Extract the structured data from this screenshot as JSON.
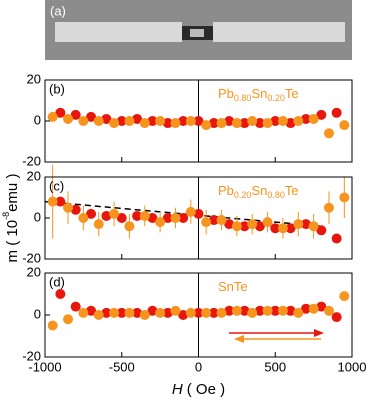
{
  "photo_label": "(a)",
  "chart_data": [
    {
      "type": "scatter",
      "label": "(b)",
      "sample": [
        "Pb",
        "0.80",
        "Sn",
        "0.20",
        "Te"
      ],
      "xlim": [
        -1000,
        1000
      ],
      "xticks": [
        -1000,
        -500,
        0,
        500,
        1000
      ],
      "ylim": [
        -20,
        20
      ],
      "yticks": [
        -20,
        0,
        20
      ],
      "series": [
        {
          "color": "#e8160c",
          "x": [
            -900,
            -800,
            -700,
            -600,
            -500,
            -400,
            -300,
            -200,
            -100,
            0,
            100,
            200,
            300,
            400,
            500,
            600,
            700,
            800,
            900
          ],
          "values": [
            4,
            3,
            2,
            1,
            0,
            1,
            0,
            -1,
            0,
            0,
            -1,
            0,
            -1,
            -1,
            0,
            -1,
            1,
            3,
            4
          ]
        },
        {
          "color": "#f7941d",
          "x": [
            -950,
            -850,
            -750,
            -650,
            -550,
            -450,
            -350,
            -250,
            -150,
            -50,
            50,
            150,
            250,
            350,
            450,
            550,
            650,
            750,
            850,
            950
          ],
          "values": [
            2,
            1,
            0,
            0,
            -1,
            0,
            -1,
            0,
            -1,
            0,
            -2,
            -1,
            -1,
            0,
            -1,
            0,
            0,
            1,
            -6,
            -2
          ]
        }
      ]
    },
    {
      "type": "scatter",
      "label": "(c)",
      "sample": [
        "Pb",
        "0.20",
        "Sn",
        "0.80",
        "Te"
      ],
      "xlim": [
        -1000,
        1000
      ],
      "xticks": [
        -1000,
        -500,
        0,
        500,
        1000
      ],
      "ylim": [
        -20,
        20
      ],
      "yticks": [
        -20,
        0,
        20
      ],
      "fit": {
        "x": [
          -1000,
          800
        ],
        "values": [
          8,
          -4
        ]
      },
      "series": [
        {
          "color": "#e8160c",
          "x": [
            -900,
            -800,
            -700,
            -600,
            -500,
            -400,
            -300,
            -200,
            -100,
            0,
            100,
            200,
            300,
            400,
            500,
            600,
            700,
            800,
            900
          ],
          "values": [
            8,
            4,
            2,
            1,
            0,
            1,
            0,
            0,
            0,
            2,
            -1,
            -3,
            -4,
            -4,
            -5,
            -5,
            -3,
            -6,
            -10
          ]
        },
        {
          "color": "#f7941d",
          "x": [
            -950,
            -850,
            -750,
            -650,
            -550,
            -450,
            -350,
            -250,
            -150,
            -50,
            50,
            150,
            250,
            350,
            450,
            550,
            650,
            750,
            850,
            950
          ],
          "values": [
            8,
            5,
            0,
            -3,
            2,
            -4,
            1,
            -2,
            0,
            3,
            -2,
            -1,
            -4,
            -3,
            -2,
            -5,
            -3,
            -4,
            5,
            10
          ],
          "errors": [
            18,
            8,
            6,
            6,
            6,
            6,
            5,
            5,
            5,
            6,
            6,
            5,
            5,
            5,
            5,
            5,
            6,
            6,
            8,
            10
          ]
        }
      ]
    },
    {
      "type": "scatter",
      "label": "(d)",
      "sample": [
        "SnTe"
      ],
      "xlim": [
        -1000,
        1000
      ],
      "xticks": [
        -1000,
        -500,
        0,
        500,
        1000
      ],
      "ylim": [
        -20,
        20
      ],
      "yticks": [
        -20,
        0,
        20
      ],
      "xlabel": {
        "symbol": "H",
        "unit": "( Oe )"
      },
      "ylabel": {
        "text": "m  ( 10",
        "sup": "-8",
        "rest": "emu )"
      },
      "series": [
        {
          "color": "#e8160c",
          "x": [
            -900,
            -800,
            -700,
            -600,
            -500,
            -400,
            -300,
            -200,
            -100,
            0,
            100,
            200,
            300,
            400,
            500,
            600,
            700,
            800,
            900
          ],
          "values": [
            10,
            4,
            2,
            1,
            1,
            1,
            2,
            1,
            0,
            1,
            1,
            2,
            2,
            2,
            2,
            2,
            3,
            4,
            -1
          ]
        },
        {
          "color": "#f7941d",
          "x": [
            -950,
            -850,
            -750,
            -650,
            -550,
            -450,
            -350,
            -250,
            -150,
            -50,
            50,
            150,
            250,
            350,
            450,
            550,
            650,
            750,
            850,
            950
          ],
          "values": [
            -5,
            -2,
            1,
            0,
            1,
            1,
            0,
            1,
            2,
            1,
            1,
            1,
            2,
            1,
            2,
            2,
            1,
            3,
            2,
            9
          ]
        }
      ]
    }
  ]
}
